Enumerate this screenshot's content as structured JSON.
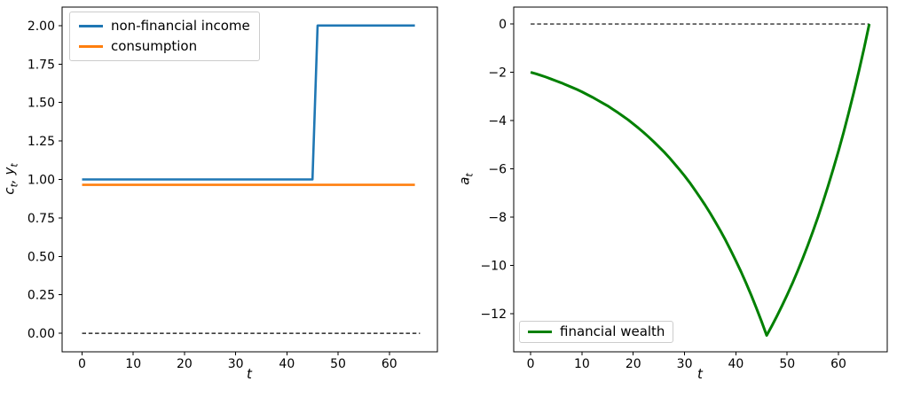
{
  "figure": {
    "background": "#ffffff"
  },
  "chart_data": [
    {
      "type": "line",
      "title": "",
      "xlabel": "t",
      "ylabel": "c_t, y_t",
      "xlim": [
        -3.9,
        69.4
      ],
      "ylim": [
        -0.12,
        2.12
      ],
      "grid": false,
      "legend_position": "upper left",
      "xticks": [
        0,
        10,
        20,
        30,
        40,
        50,
        60
      ],
      "xtick_labels": [
        "0",
        "10",
        "20",
        "30",
        "40",
        "50",
        "60"
      ],
      "yticks": [
        0,
        0.25,
        0.5,
        0.75,
        1.0,
        1.25,
        1.5,
        1.75,
        2.0
      ],
      "ytick_labels": [
        "0.00",
        "0.25",
        "0.50",
        "0.75",
        "1.00",
        "1.25",
        "1.50",
        "1.75",
        "2.00"
      ],
      "series": [
        {
          "color": "#000000",
          "lw": 1.2,
          "dash": "4.5,2.8",
          "x": [
            0,
            66
          ],
          "y": [
            0,
            0
          ]
        },
        {
          "name": "non-financial income",
          "color": "#1f77b4",
          "lw": 2.6,
          "x": [
            0,
            45,
            46,
            65
          ],
          "y": [
            1,
            1,
            2,
            2
          ]
        },
        {
          "name": "consumption",
          "color": "#ff7f0e",
          "lw": 2.6,
          "x": [
            0,
            65
          ],
          "y": [
            0.965,
            0.965
          ]
        }
      ]
    },
    {
      "type": "line",
      "title": "",
      "xlabel": "t",
      "ylabel": "a_t",
      "xlim": [
        -3.3,
        69.5
      ],
      "ylim": [
        -13.58,
        0.7
      ],
      "grid": false,
      "legend_position": "lower left",
      "xticks": [
        0,
        10,
        20,
        30,
        40,
        50,
        60
      ],
      "xtick_labels": [
        "0",
        "10",
        "20",
        "30",
        "40",
        "50",
        "60"
      ],
      "yticks": [
        0,
        -2,
        -4,
        -6,
        -8,
        -10,
        -12
      ],
      "ytick_labels": [
        "0",
        "−2",
        "−4",
        "−6",
        "−8",
        "−10",
        "−12"
      ],
      "series": [
        {
          "color": "#000000",
          "lw": 1.2,
          "dash": "4.5,2.8",
          "x": [
            0,
            66
          ],
          "y": [
            0,
            0
          ]
        },
        {
          "name": "financial wealth",
          "color": "#008000",
          "lw": 3,
          "y": [
            -2.0,
            -2.06,
            -2.13,
            -2.2,
            -2.28,
            -2.36,
            -2.44,
            -2.53,
            -2.62,
            -2.71,
            -2.81,
            -2.92,
            -3.03,
            -3.15,
            -3.27,
            -3.39,
            -3.53,
            -3.67,
            -3.82,
            -3.97,
            -4.14,
            -4.31,
            -4.49,
            -4.68,
            -4.88,
            -5.09,
            -5.3,
            -5.53,
            -5.78,
            -6.03,
            -6.29,
            -6.57,
            -6.87,
            -7.18,
            -7.5,
            -7.84,
            -8.2,
            -8.57,
            -8.96,
            -9.38,
            -9.81,
            -10.26,
            -10.74,
            -11.24,
            -11.77,
            -12.32,
            -12.9,
            -12.51,
            -12.1,
            -11.67,
            -11.22,
            -10.75,
            -10.25,
            -9.73,
            -9.18,
            -8.6,
            -8.0,
            -7.36,
            -6.69,
            -5.99,
            -5.26,
            -4.49,
            -3.67,
            -2.82,
            -1.93,
            -0.99,
            0.0
          ]
        }
      ]
    }
  ]
}
